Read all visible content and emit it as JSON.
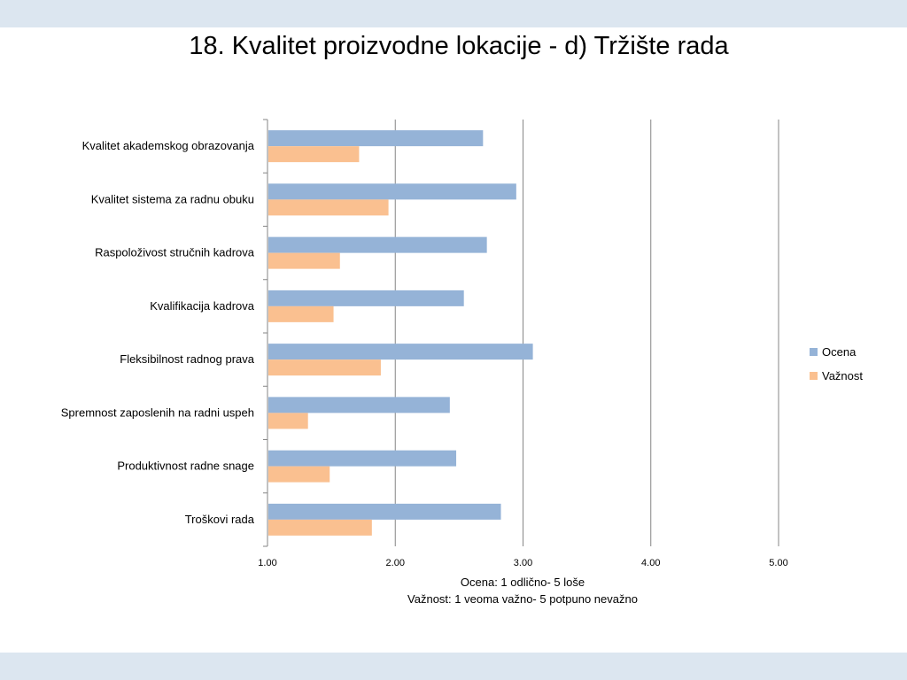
{
  "slide": {
    "title": "18. Kvalitet proizvodne lokacije - d) Tržište rada"
  },
  "chart_data": {
    "type": "bar",
    "orientation": "horizontal",
    "categories": [
      "Kvalitet akademskog obrazovanja",
      "Kvalitet sistema za radnu obuku",
      "Raspoloživost stručnih kadrova",
      "Kvalifikacija kadrova",
      "Fleksibilnost radnog prava",
      "Spremnost zaposlenih na radni uspeh",
      "Produktivnost radne snage",
      "Troškovi rada"
    ],
    "series": [
      {
        "name": "Ocena",
        "color": "#95b3d7",
        "values": [
          2.68,
          2.94,
          2.71,
          2.53,
          3.07,
          2.42,
          2.47,
          2.82
        ]
      },
      {
        "name": "Važnost",
        "color": "#fac090",
        "values": [
          1.71,
          1.94,
          1.56,
          1.51,
          1.88,
          1.31,
          1.48,
          1.81
        ]
      }
    ],
    "xlim": [
      1,
      5
    ],
    "x_ticks": [
      "1.00",
      "2.00",
      "3.00",
      "4.00",
      "5.00"
    ],
    "xlabel_lines": [
      "Ocena: 1 odlično- 5 loše",
      "Važnost: 1 veoma važno- 5 potpuno nevažno"
    ],
    "grid": "vertical",
    "legend_position": "right"
  }
}
